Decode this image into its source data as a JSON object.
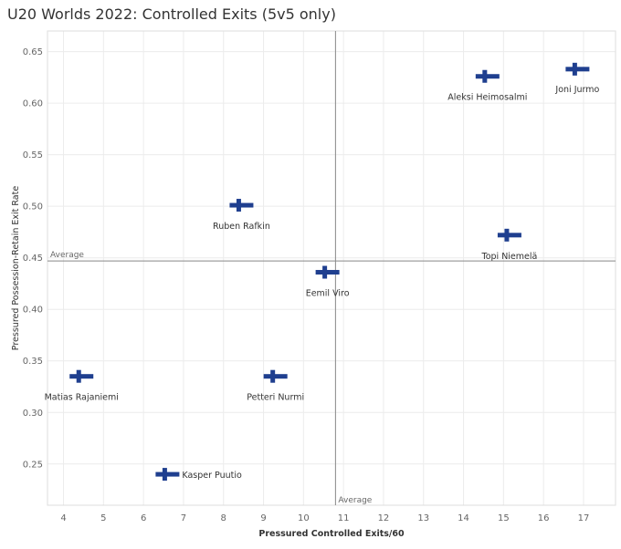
{
  "title": "U20 Worlds 2022: Controlled Exits (5v5 only)",
  "chart_data": {
    "type": "scatter",
    "title": "U20 Worlds 2022: Controlled Exits (5v5 only)",
    "xlabel": "Pressured Controlled Exits/60",
    "ylabel": "Pressured Possession-Retain Exit Rate",
    "xlim": [
      3.6,
      17.8
    ],
    "ylim": [
      0.21,
      0.67
    ],
    "x_ticks": [
      4,
      5,
      6,
      7,
      8,
      9,
      10,
      11,
      12,
      13,
      14,
      15,
      16,
      17
    ],
    "y_ticks": [
      0.25,
      0.3,
      0.35,
      0.4,
      0.45,
      0.5,
      0.55,
      0.6,
      0.65
    ],
    "marker": "finland-flag-cross",
    "marker_color": "#1f3f8f",
    "points": [
      {
        "label": "Aleksi Heimosalmi",
        "x": 14.6,
        "y": 0.626
      },
      {
        "label": "Joni Jurmo",
        "x": 16.85,
        "y": 0.633
      },
      {
        "label": "Ruben Rafkin",
        "x": 8.45,
        "y": 0.501
      },
      {
        "label": "Topi Niemelä",
        "x": 15.15,
        "y": 0.472
      },
      {
        "label": "Eemil Viro",
        "x": 10.6,
        "y": 0.436
      },
      {
        "label": "Matias Rajaniemi",
        "x": 4.45,
        "y": 0.335
      },
      {
        "label": "Petteri Nurmi",
        "x": 9.3,
        "y": 0.335
      },
      {
        "label": "Kasper Puutio",
        "x": 6.6,
        "y": 0.24
      }
    ],
    "reference_lines": {
      "x_average": {
        "value": 10.8,
        "label": "Average"
      },
      "y_average": {
        "value": 0.447,
        "label": "Average"
      }
    },
    "grid": true
  }
}
